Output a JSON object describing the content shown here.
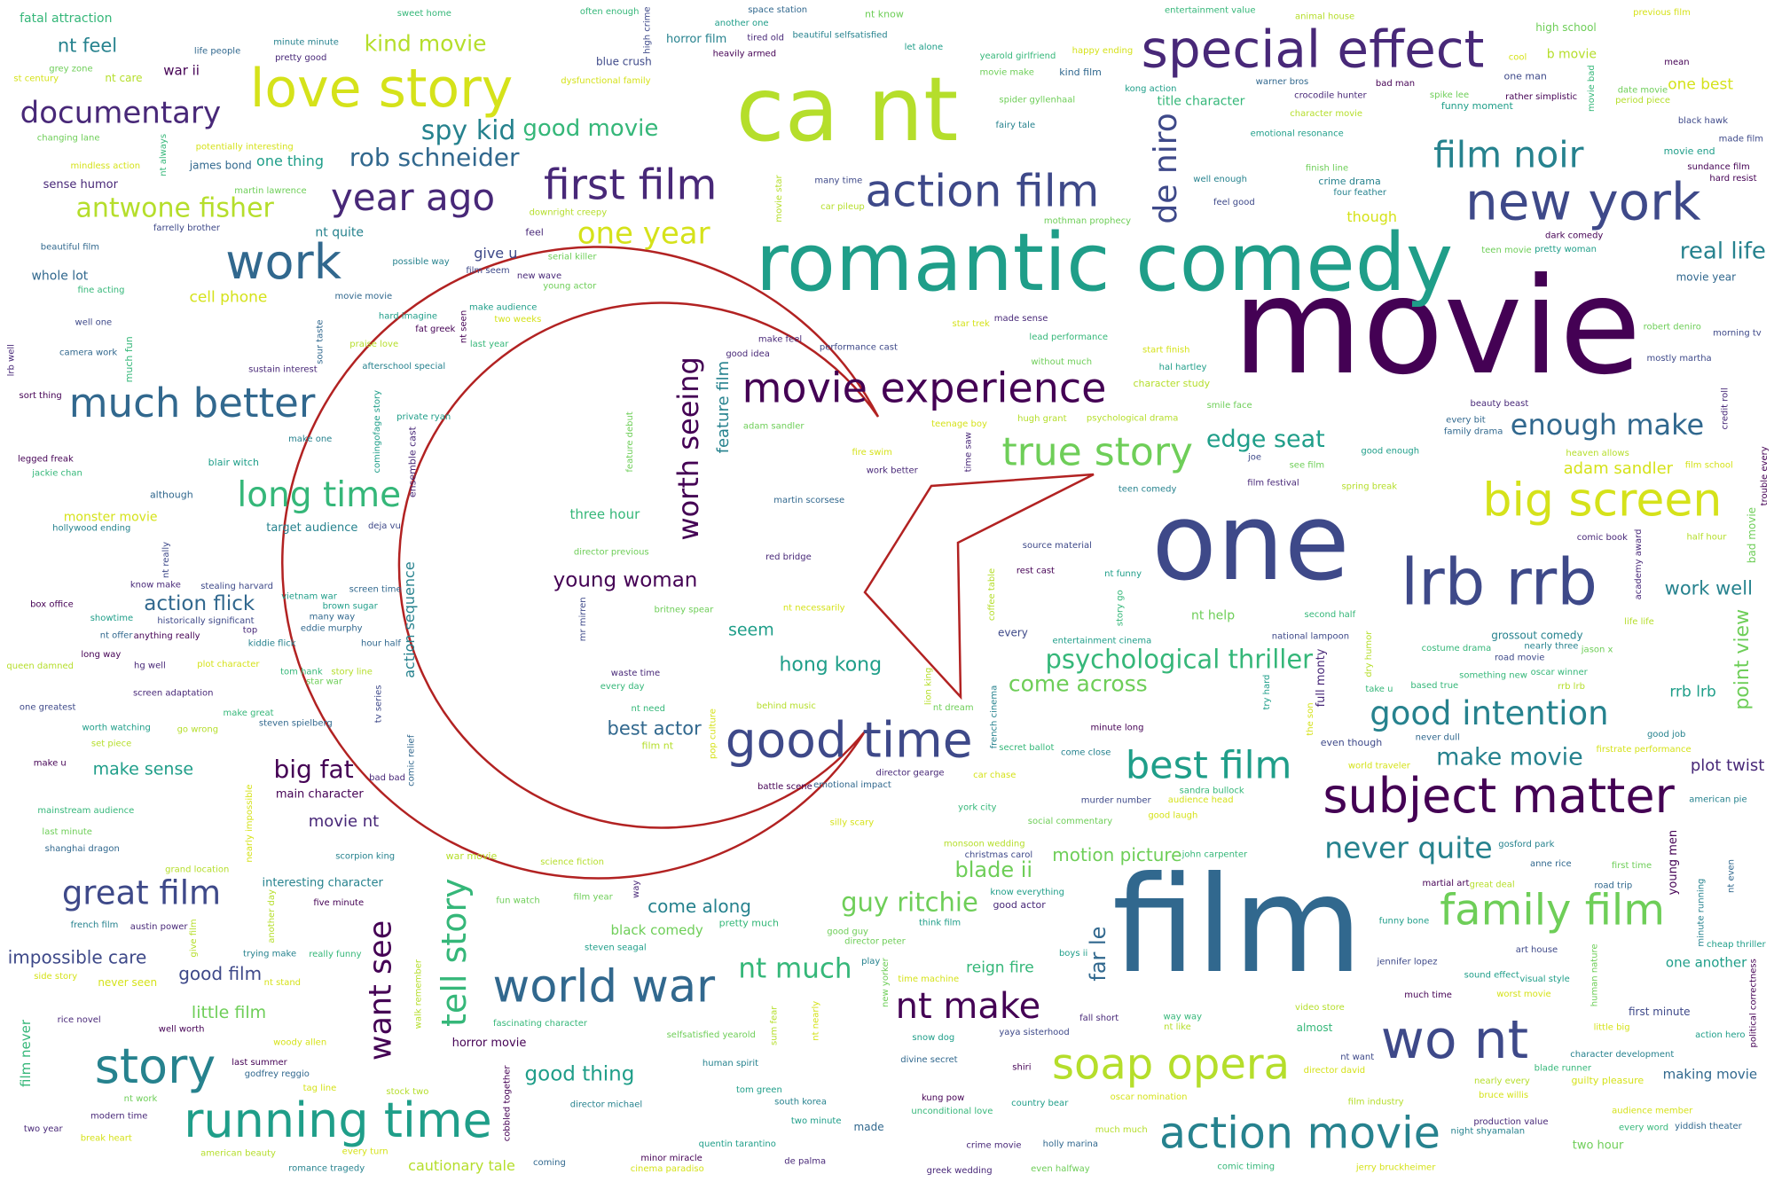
{
  "image": {
    "kind": "word cloud",
    "mask_shape": "crescent and star",
    "mask_outline_color": "#b22222",
    "background": "#ffffff",
    "palette": [
      "#440154",
      "#482878",
      "#3e4989",
      "#31688e",
      "#26828e",
      "#1f9e89",
      "#35b779",
      "#6ece58",
      "#b5de2b",
      "#d5e21a"
    ]
  },
  "words": [
    "movie",
    "film",
    "one",
    "romantic comedy",
    "ca nt",
    "special effect",
    "lrb rrb",
    "love story",
    "new york",
    "wo nt",
    "subject matter",
    "soap opera",
    "work",
    "story",
    "good time",
    "running time",
    "big screen",
    "world war",
    "action film",
    "action movie",
    "family film",
    "first film",
    "movie experience",
    "much better",
    "true story",
    "best film",
    "year ago",
    "film noir",
    "nt make",
    "long time",
    "tell story",
    "good intention",
    "great film",
    "de niro",
    "want see",
    "documentary",
    "one year",
    "never quite",
    "enough make",
    "worth seeing",
    "nt much",
    "antwone fisher",
    "spy kid",
    "guy ritchie",
    "psychological thriller",
    "big fat",
    "rob schneider",
    "edge seat",
    "make movie",
    "real life",
    "good movie",
    "come across",
    "kind movie",
    "blade ii",
    "far le",
    "young woman",
    "good thing",
    "action flick",
    "point view",
    "hong kong",
    "nt feel",
    "best actor",
    "work well",
    "good film",
    "motion picture",
    "impossible care",
    "come along",
    "little film",
    "seem",
    "make sense",
    "movie nt",
    "plot twist",
    "adam sandler",
    "feature film",
    "cell phone",
    "reign fire",
    "rrb lrb",
    "one best",
    "though",
    "give u",
    "one thing",
    "action sequence",
    "cautionary tale",
    "war ii",
    "three hour",
    "one another",
    "black comedy",
    "film never",
    "making movie",
    "whole lot",
    "b movie",
    "nt help",
    "monster movie",
    "nt quite",
    "title character",
    "fatal attraction",
    "sense humor",
    "horror film",
    "target audience",
    "main character",
    "young men",
    "horror movie",
    "two hour",
    "full monty",
    "interesting character",
    "high school",
    "movie year",
    "first minute",
    "never seen",
    "james bond",
    "blue crush",
    "grossout comedy",
    "nt care",
    "made",
    "almost",
    "every",
    "bad movie",
    "good actor",
    "even though",
    "much fun",
    "blair witch",
    "pretty much",
    "war movie",
    "character study",
    "guilty pleasure",
    "crime drama",
    "film nt",
    "although",
    "movie end",
    "ensemble cast",
    "feel",
    "kind film",
    "funny moment",
    "one man",
    "nt know",
    "nt seen",
    "make feel",
    "many time",
    "way",
    "greek wedding",
    "teenage boy",
    "jackie chan",
    "hard imagine",
    "country bear",
    "car chase",
    "character development",
    "video store",
    "de palma",
    "kiddie flick",
    "fairy tale",
    "feature debut",
    "lead performance",
    "film year",
    "screen time",
    "made film",
    "film school",
    "hugh grant",
    "pretty woman",
    "credit roll",
    "social commentary",
    "plot character",
    "spring break",
    "mindless action",
    "human nature",
    "star war",
    "make great",
    "director michael",
    "murder number",
    "comic relief",
    "sandra bullock",
    "time machine",
    "animal house",
    "let alone",
    "mainstream audience",
    "battle scene",
    "oscar nomination",
    "art house",
    "rice novel",
    "emotional resonance",
    "lrb well",
    "austin power",
    "last year",
    "nearly three",
    "nt always",
    "human spirit",
    "good job",
    "bruce willis",
    "martial art",
    "film seem",
    "long way",
    "afterschool special",
    "nt stand",
    "queen damned",
    "jerry bruckheimer",
    "visual style",
    "waste time",
    "based true",
    "tom green",
    "rrb lrb",
    "york city",
    "fine acting",
    "star trek",
    "french film",
    "kung pow",
    "nt funny",
    "private ryan",
    "jennifer lopez",
    "eddie murphy",
    "trouble every",
    "nt really",
    "film festival",
    "play",
    "well enough",
    "fall short",
    "worst movie",
    "steven spielberg",
    "first time",
    "entertainment value",
    "every day",
    "dark comedy",
    "martin lawrence",
    "dysfunctional family",
    "previous film",
    "serial killer",
    "deja vu",
    "beautiful film",
    "minute running",
    "minute minute",
    "selfsatisfied yearold",
    "comingofage story",
    "comic book",
    "teen movie",
    "sustain interest",
    "steven seagal",
    "nearly impossible",
    "nt even",
    "every bit",
    "sum fear",
    "crime movie",
    "box office",
    "world traveler",
    "young actor",
    "side story",
    "bad bad",
    "hg well",
    "good idea",
    "another one",
    "pretty good",
    "give film",
    "movie star",
    "sweet home",
    "new yorker",
    "teen comedy",
    "take u",
    "comic timing",
    "audience member",
    "tom hank",
    "last summer",
    "nt offer",
    "every turn",
    "hour half",
    "fat greek",
    "start finish",
    "way way",
    "know make",
    "film industry",
    "many way",
    "without much",
    "nt need",
    "try hard",
    "another day",
    "smile face",
    "downright creepy",
    "beautiful selfsatisfied",
    "feel good",
    "source material",
    "romance tragedy",
    "often enough",
    "nt nearly",
    "something new",
    "walk remember",
    "changing lane",
    "fun watch",
    "great deal",
    "sort thing",
    "half hour",
    "make u",
    "movie bad",
    "go wrong",
    "minute long",
    "never dull",
    "two minute",
    "break heart",
    "one greatest",
    "life life",
    "really funny",
    "movie make",
    "well worth",
    "stealing harvard",
    "movie movie",
    "martin scorsese",
    "heaven allows",
    "rest cast",
    "sundance film",
    "time saw",
    "date movie",
    "britney spear",
    "woody allen",
    "st century",
    "snow dog",
    "trying make",
    "road movie",
    "second half",
    "grey zone",
    "possible way",
    "american beauty",
    "happy ending",
    "robert deniro",
    "shanghai dragon",
    "director peter",
    "farrelly brother",
    "jason x",
    "hal hartley",
    "shiri",
    "emotional impact",
    "good guy",
    "worth watching",
    "tv series",
    "sound effect",
    "character movie",
    "nt work",
    "high crime",
    "adam sandler",
    "the son",
    "nt want",
    "think film",
    "cool",
    "joe",
    "two weeks",
    "coming",
    "american pie",
    "coffee table",
    "production value",
    "political correctness",
    "space station",
    "nearly every",
    "story go",
    "kong action",
    "two year",
    "anne rice",
    "well one",
    "tag line",
    "gosford park",
    "spike lee",
    "warner bros",
    "made sense",
    "yearold girlfriend",
    "costume drama",
    "cinema paradiso",
    "nt dream",
    "hollywood ending",
    "blade runner",
    "john carpenter",
    "legged freak",
    "heavily armed",
    "director david",
    "much time",
    "come close",
    "dry humor",
    "oscar winner",
    "tired old",
    "mean",
    "secret ballot",
    "top",
    "action hero",
    "make one",
    "national lampoon",
    "work better",
    "good enough",
    "four feather",
    "stock two",
    "life people",
    "historically significant",
    "lion king",
    "nt like",
    "showtime",
    "little big",
    "yiddish theater",
    "car pileup",
    "brown sugar",
    "french cinema",
    "psychological drama",
    "grand location",
    "fascinating character",
    "cobbled together",
    "behind music",
    "quentin tarantino",
    "pop culture",
    "mr mirren",
    "screen adaptation",
    "period piece",
    "know everything",
    "new wave",
    "holly marina",
    "audience head",
    "modern time",
    "scorpion king",
    "south korea",
    "potentially interesting",
    "set piece",
    "road trip",
    "last minute",
    "camera work",
    "morning tv",
    "story line",
    "silly scary",
    "minor miracle",
    "godfrey reggio",
    "spider gyllenhaal",
    "nt necessarily",
    "even halfway",
    "boys ii",
    "divine secret",
    "yaya sisterhood",
    "science fiction",
    "performance cast",
    "anything really",
    "night shyamalan",
    "hard resist",
    "good laugh",
    "finish line",
    "cheap thriller",
    "sour taste",
    "entertainment cinema",
    "christmas carol",
    "rather simplistic",
    "black hawk",
    "unconditional love",
    "family drama",
    "bad man",
    "funny bone",
    "mothman prophecy",
    "director gearge",
    "red bridge",
    "fire swim",
    "monsoon wedding",
    "crocodile hunter",
    "vietnam war",
    "firstrate performance",
    "academy award",
    "beauty beast",
    "much much",
    "five minute",
    "praise love",
    "mostly martha",
    "make audience",
    "every word",
    "director previous",
    "see film"
  ]
}
